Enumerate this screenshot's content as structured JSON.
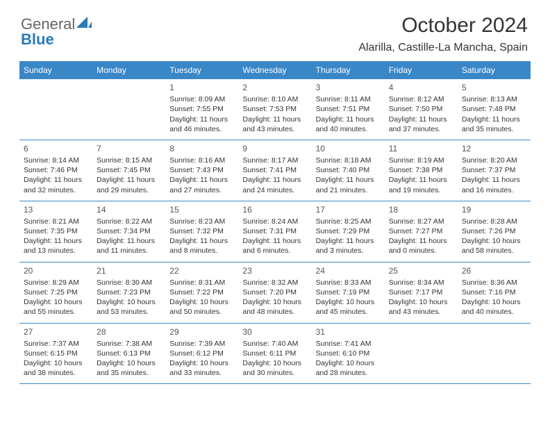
{
  "logo": {
    "text1": "General",
    "text2": "Blue"
  },
  "title": "October 2024",
  "subtitle": "Alarilla, Castille-La Mancha, Spain",
  "colors": {
    "header_bg": "#3a87c8",
    "header_text": "#ffffff",
    "rule": "#3a87c8",
    "body_text": "#333333",
    "logo_accent": "#2a7ab8"
  },
  "day_names": [
    "Sunday",
    "Monday",
    "Tuesday",
    "Wednesday",
    "Thursday",
    "Friday",
    "Saturday"
  ],
  "weeks": [
    [
      null,
      null,
      {
        "n": "1",
        "sr": "Sunrise: 8:09 AM",
        "ss": "Sunset: 7:55 PM",
        "d1": "Daylight: 11 hours",
        "d2": "and 46 minutes."
      },
      {
        "n": "2",
        "sr": "Sunrise: 8:10 AM",
        "ss": "Sunset: 7:53 PM",
        "d1": "Daylight: 11 hours",
        "d2": "and 43 minutes."
      },
      {
        "n": "3",
        "sr": "Sunrise: 8:11 AM",
        "ss": "Sunset: 7:51 PM",
        "d1": "Daylight: 11 hours",
        "d2": "and 40 minutes."
      },
      {
        "n": "4",
        "sr": "Sunrise: 8:12 AM",
        "ss": "Sunset: 7:50 PM",
        "d1": "Daylight: 11 hours",
        "d2": "and 37 minutes."
      },
      {
        "n": "5",
        "sr": "Sunrise: 8:13 AM",
        "ss": "Sunset: 7:48 PM",
        "d1": "Daylight: 11 hours",
        "d2": "and 35 minutes."
      }
    ],
    [
      {
        "n": "6",
        "sr": "Sunrise: 8:14 AM",
        "ss": "Sunset: 7:46 PM",
        "d1": "Daylight: 11 hours",
        "d2": "and 32 minutes."
      },
      {
        "n": "7",
        "sr": "Sunrise: 8:15 AM",
        "ss": "Sunset: 7:45 PM",
        "d1": "Daylight: 11 hours",
        "d2": "and 29 minutes."
      },
      {
        "n": "8",
        "sr": "Sunrise: 8:16 AM",
        "ss": "Sunset: 7:43 PM",
        "d1": "Daylight: 11 hours",
        "d2": "and 27 minutes."
      },
      {
        "n": "9",
        "sr": "Sunrise: 8:17 AM",
        "ss": "Sunset: 7:41 PM",
        "d1": "Daylight: 11 hours",
        "d2": "and 24 minutes."
      },
      {
        "n": "10",
        "sr": "Sunrise: 8:18 AM",
        "ss": "Sunset: 7:40 PM",
        "d1": "Daylight: 11 hours",
        "d2": "and 21 minutes."
      },
      {
        "n": "11",
        "sr": "Sunrise: 8:19 AM",
        "ss": "Sunset: 7:38 PM",
        "d1": "Daylight: 11 hours",
        "d2": "and 19 minutes."
      },
      {
        "n": "12",
        "sr": "Sunrise: 8:20 AM",
        "ss": "Sunset: 7:37 PM",
        "d1": "Daylight: 11 hours",
        "d2": "and 16 minutes."
      }
    ],
    [
      {
        "n": "13",
        "sr": "Sunrise: 8:21 AM",
        "ss": "Sunset: 7:35 PM",
        "d1": "Daylight: 11 hours",
        "d2": "and 13 minutes."
      },
      {
        "n": "14",
        "sr": "Sunrise: 8:22 AM",
        "ss": "Sunset: 7:34 PM",
        "d1": "Daylight: 11 hours",
        "d2": "and 11 minutes."
      },
      {
        "n": "15",
        "sr": "Sunrise: 8:23 AM",
        "ss": "Sunset: 7:32 PM",
        "d1": "Daylight: 11 hours",
        "d2": "and 8 minutes."
      },
      {
        "n": "16",
        "sr": "Sunrise: 8:24 AM",
        "ss": "Sunset: 7:31 PM",
        "d1": "Daylight: 11 hours",
        "d2": "and 6 minutes."
      },
      {
        "n": "17",
        "sr": "Sunrise: 8:25 AM",
        "ss": "Sunset: 7:29 PM",
        "d1": "Daylight: 11 hours",
        "d2": "and 3 minutes."
      },
      {
        "n": "18",
        "sr": "Sunrise: 8:27 AM",
        "ss": "Sunset: 7:27 PM",
        "d1": "Daylight: 11 hours",
        "d2": "and 0 minutes."
      },
      {
        "n": "19",
        "sr": "Sunrise: 8:28 AM",
        "ss": "Sunset: 7:26 PM",
        "d1": "Daylight: 10 hours",
        "d2": "and 58 minutes."
      }
    ],
    [
      {
        "n": "20",
        "sr": "Sunrise: 8:29 AM",
        "ss": "Sunset: 7:25 PM",
        "d1": "Daylight: 10 hours",
        "d2": "and 55 minutes."
      },
      {
        "n": "21",
        "sr": "Sunrise: 8:30 AM",
        "ss": "Sunset: 7:23 PM",
        "d1": "Daylight: 10 hours",
        "d2": "and 53 minutes."
      },
      {
        "n": "22",
        "sr": "Sunrise: 8:31 AM",
        "ss": "Sunset: 7:22 PM",
        "d1": "Daylight: 10 hours",
        "d2": "and 50 minutes."
      },
      {
        "n": "23",
        "sr": "Sunrise: 8:32 AM",
        "ss": "Sunset: 7:20 PM",
        "d1": "Daylight: 10 hours",
        "d2": "and 48 minutes."
      },
      {
        "n": "24",
        "sr": "Sunrise: 8:33 AM",
        "ss": "Sunset: 7:19 PM",
        "d1": "Daylight: 10 hours",
        "d2": "and 45 minutes."
      },
      {
        "n": "25",
        "sr": "Sunrise: 8:34 AM",
        "ss": "Sunset: 7:17 PM",
        "d1": "Daylight: 10 hours",
        "d2": "and 43 minutes."
      },
      {
        "n": "26",
        "sr": "Sunrise: 8:36 AM",
        "ss": "Sunset: 7:16 PM",
        "d1": "Daylight: 10 hours",
        "d2": "and 40 minutes."
      }
    ],
    [
      {
        "n": "27",
        "sr": "Sunrise: 7:37 AM",
        "ss": "Sunset: 6:15 PM",
        "d1": "Daylight: 10 hours",
        "d2": "and 38 minutes."
      },
      {
        "n": "28",
        "sr": "Sunrise: 7:38 AM",
        "ss": "Sunset: 6:13 PM",
        "d1": "Daylight: 10 hours",
        "d2": "and 35 minutes."
      },
      {
        "n": "29",
        "sr": "Sunrise: 7:39 AM",
        "ss": "Sunset: 6:12 PM",
        "d1": "Daylight: 10 hours",
        "d2": "and 33 minutes."
      },
      {
        "n": "30",
        "sr": "Sunrise: 7:40 AM",
        "ss": "Sunset: 6:11 PM",
        "d1": "Daylight: 10 hours",
        "d2": "and 30 minutes."
      },
      {
        "n": "31",
        "sr": "Sunrise: 7:41 AM",
        "ss": "Sunset: 6:10 PM",
        "d1": "Daylight: 10 hours",
        "d2": "and 28 minutes."
      },
      null,
      null
    ]
  ]
}
